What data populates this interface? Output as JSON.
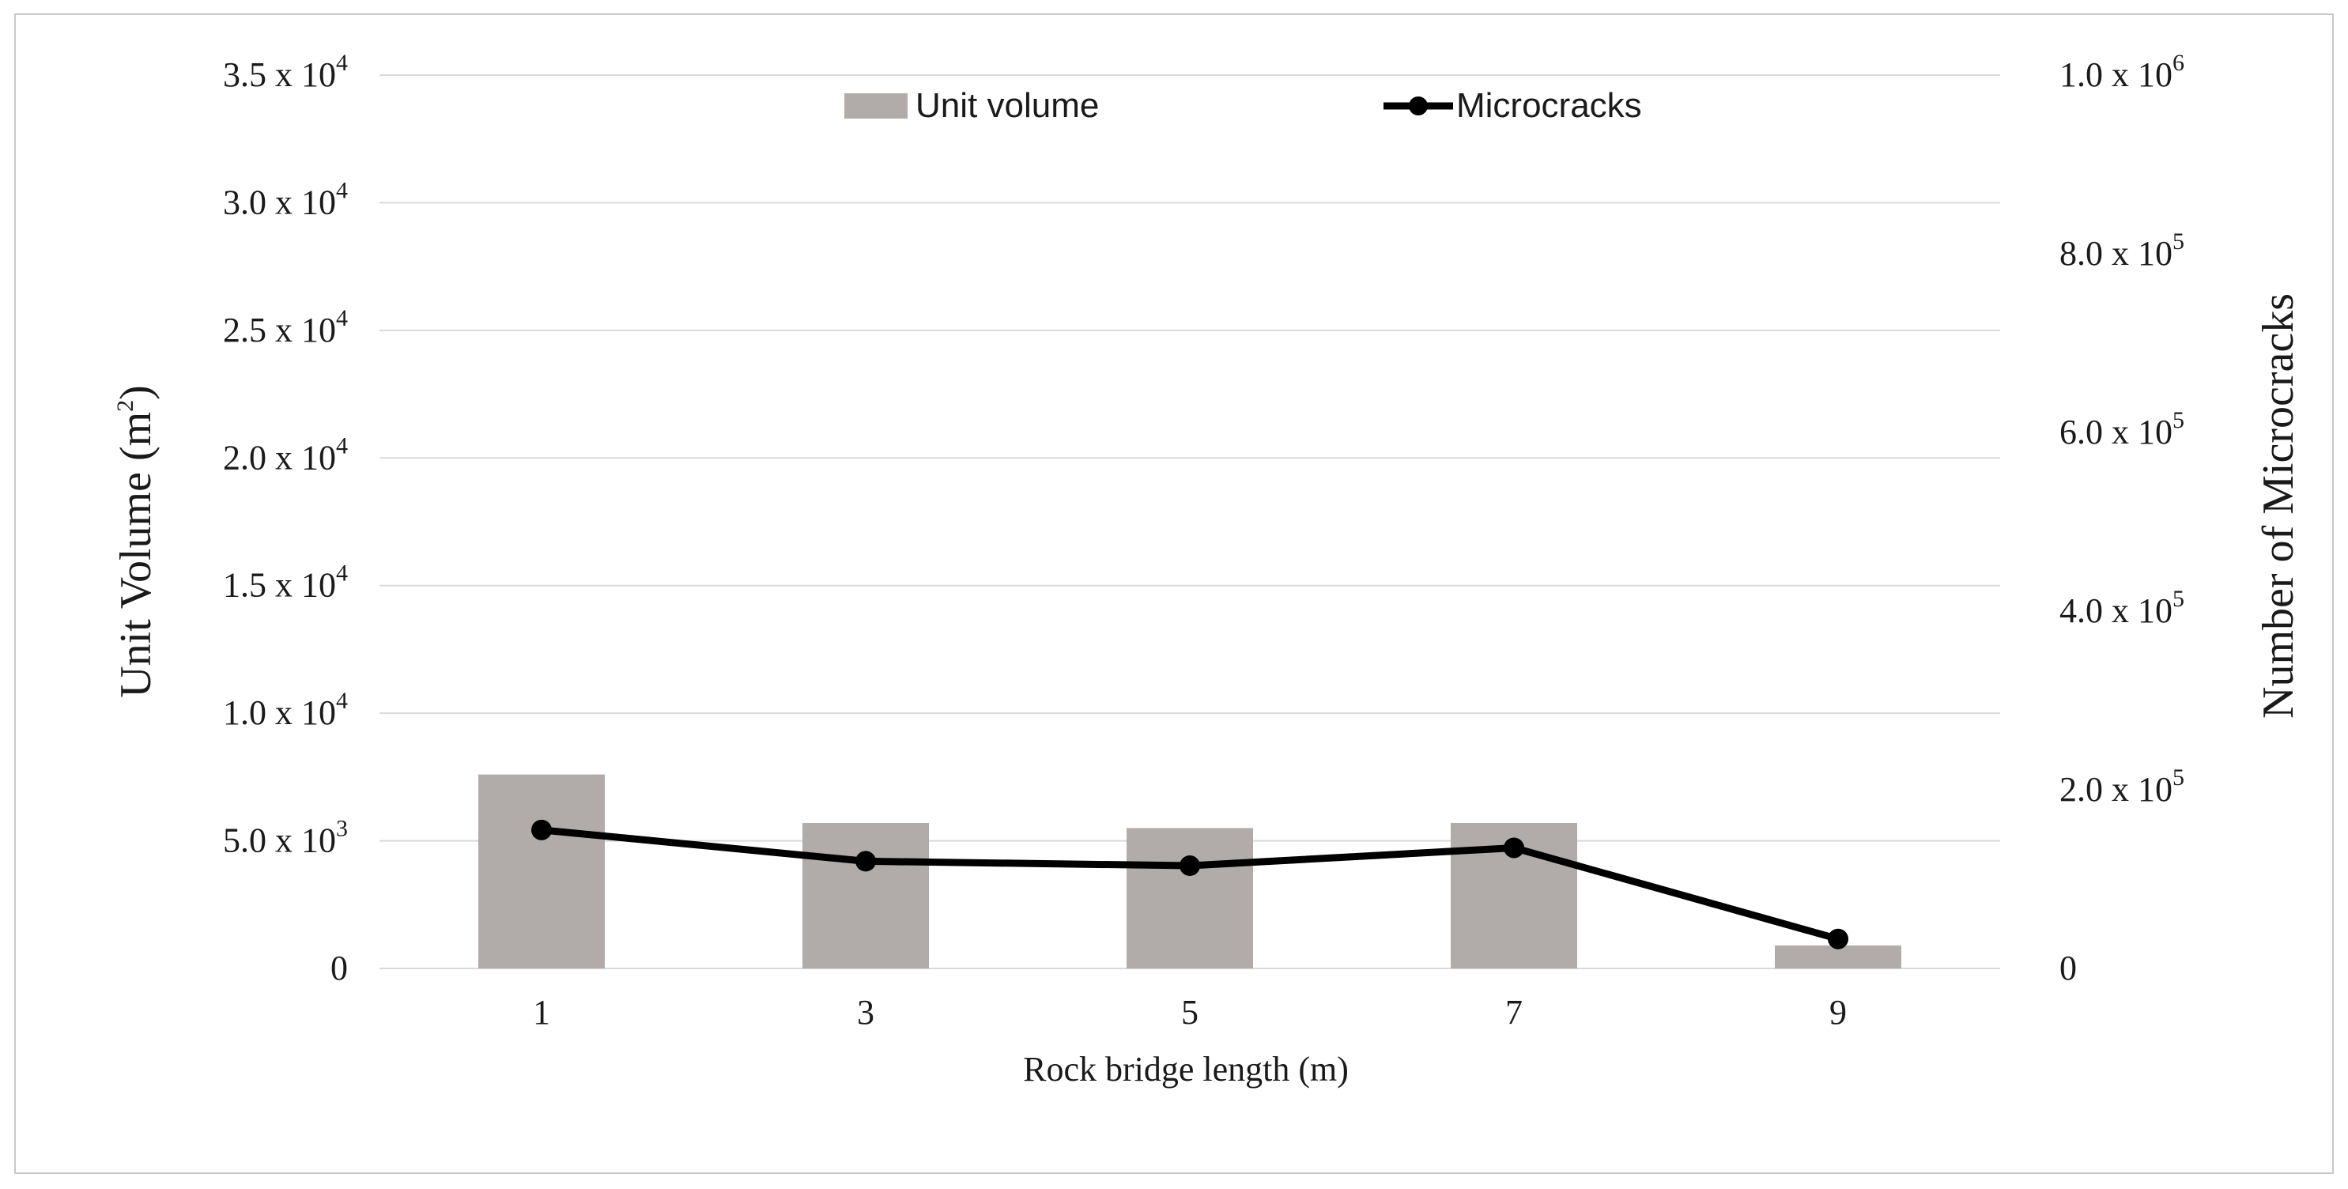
{
  "chart_data": {
    "type": "bar",
    "categories": [
      "1",
      "3",
      "5",
      "7",
      "9"
    ],
    "xlabel": "Rock bridge length (m)",
    "ylabel": {
      "text": "Unit Volume (m",
      "sup": "2",
      "tail": ")"
    },
    "y2label": "Number of Microcracks",
    "ylim": [
      0,
      35000
    ],
    "y2lim": [
      0,
      1000000
    ],
    "grid": true,
    "legend_position": "top-center",
    "y_ticks": [
      {
        "value": 0,
        "label": "0",
        "sup": ""
      },
      {
        "value": 5000,
        "label": "5.0 x 10",
        "sup": "3"
      },
      {
        "value": 10000,
        "label": "1.0 x 10",
        "sup": "4"
      },
      {
        "value": 15000,
        "label": "1.5 x 10",
        "sup": "4"
      },
      {
        "value": 20000,
        "label": "2.0 x 10",
        "sup": "4"
      },
      {
        "value": 25000,
        "label": "2.5 x 10",
        "sup": "4"
      },
      {
        "value": 30000,
        "label": "3.0 x 10",
        "sup": "4"
      },
      {
        "value": 35000,
        "label": "3.5 x 10",
        "sup": "4"
      }
    ],
    "y2_ticks": [
      {
        "value": 0,
        "label": "0",
        "sup": ""
      },
      {
        "value": 200000,
        "label": "2.0 x 10",
        "sup": "5"
      },
      {
        "value": 400000,
        "label": "4.0 x 10",
        "sup": "5"
      },
      {
        "value": 600000,
        "label": "6.0 x 10",
        "sup": "5"
      },
      {
        "value": 800000,
        "label": "8.0 x 10",
        "sup": "5"
      },
      {
        "value": 1000000,
        "label": "1.0 x 10",
        "sup": "6"
      }
    ],
    "series": [
      {
        "name": "Unit volume",
        "type": "bar",
        "axis": "left",
        "color": "#b1acaa",
        "values": [
          7600,
          5700,
          5500,
          5700,
          900
        ]
      },
      {
        "name": "Microcracks",
        "type": "line",
        "axis": "right",
        "color": "#000000",
        "values": [
          155000,
          120000,
          115000,
          135000,
          33000
        ]
      }
    ]
  }
}
